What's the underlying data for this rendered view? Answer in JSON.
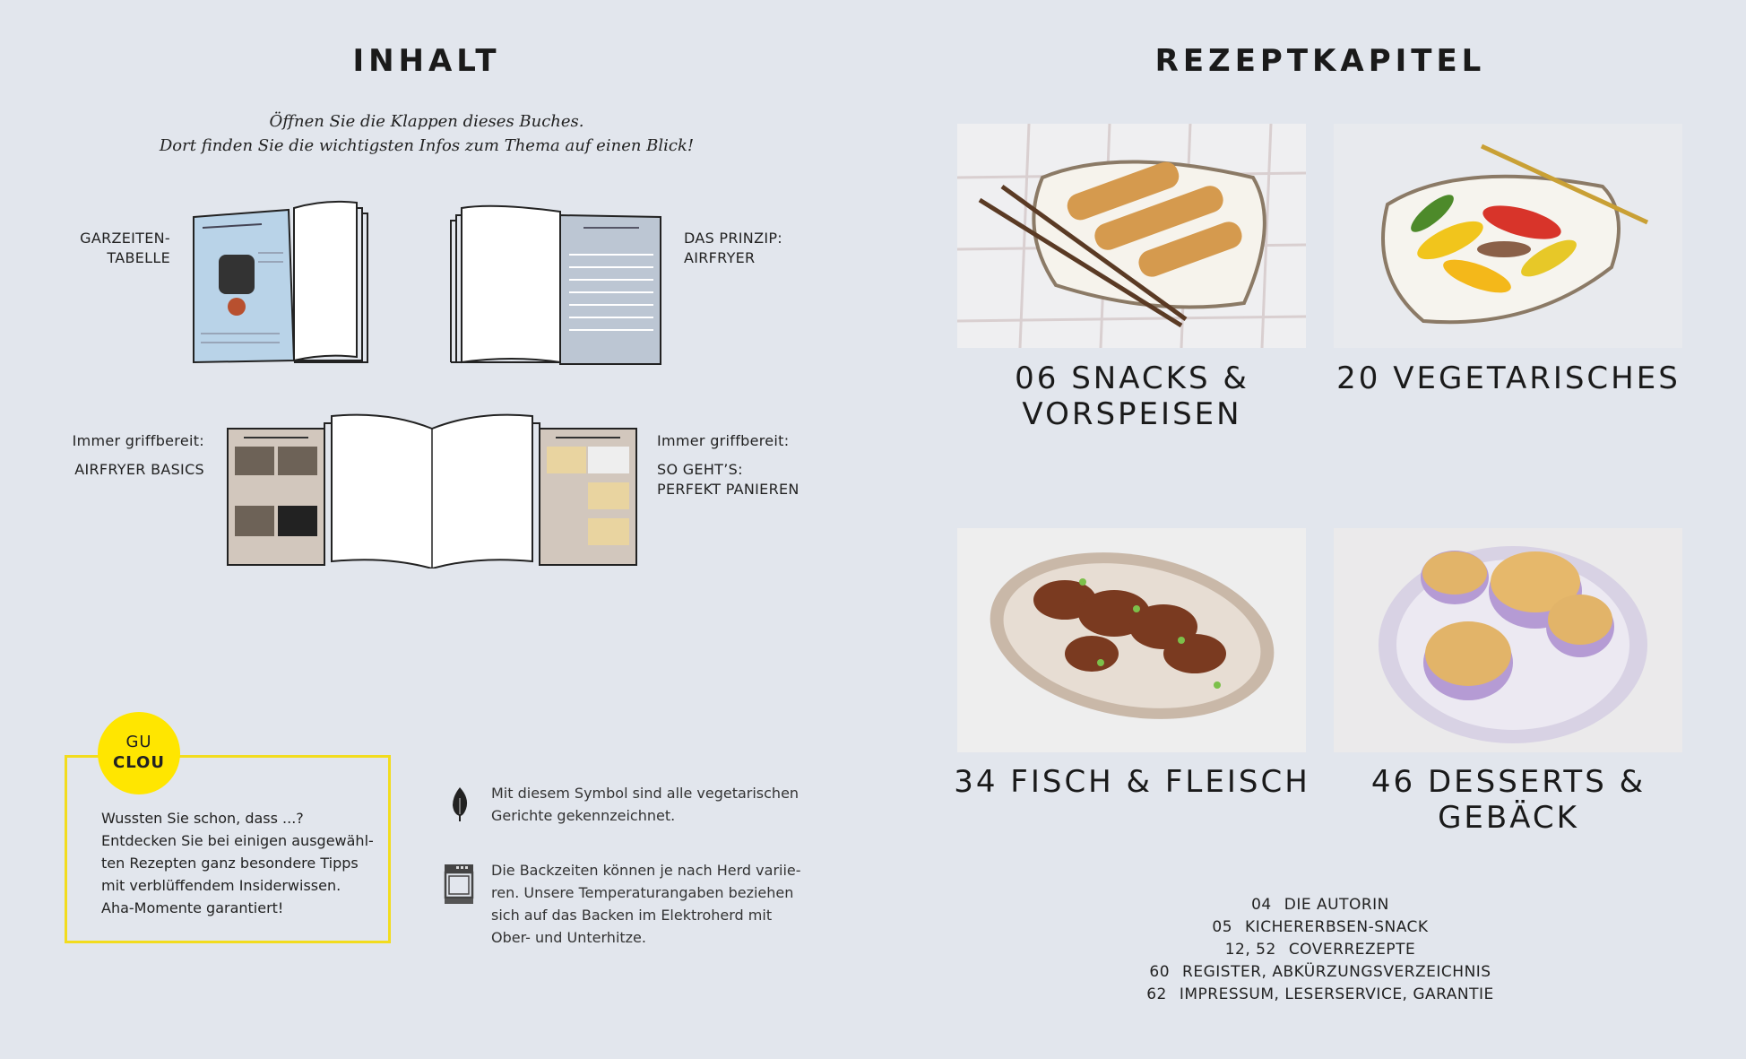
{
  "left": {
    "title": "INHALT",
    "intro": [
      "Öffnen Sie die Klappen dieses Buches.",
      "Dort finden Sie die wichtigsten Infos zum Thema auf einen Blick!"
    ],
    "flaps": [
      {
        "label": [
          "GARZEITEN-",
          "TABELLE"
        ],
        "page_title": "DAS PRINZIP: AIRFRYER"
      },
      {
        "label": [
          "DAS PRINZIP:",
          "AIRFRYER"
        ],
        "page_title": "GARZEITENTABELLE"
      },
      {
        "label": [
          "Immer griffbereit:",
          "AIRFRYER BASICS"
        ],
        "page_title": "AIRFRYER BASICS"
      },
      {
        "label": [
          "Immer griffbereit:",
          "SO GEHT’S:",
          "PERFEKT PANIEREN"
        ],
        "page_title": "SO GEHT’S: PERFEKT PANIEREN"
      }
    ],
    "clou": {
      "badge": [
        "GU",
        "CLOU"
      ],
      "text": [
        "Wussten Sie schon, dass ...?",
        "Entdecken Sie bei einigen ausgewähl-",
        "ten Rezepten ganz besondere Tipps",
        "mit verblüffendem Insiderwissen.",
        "Aha-Momente garantiert!"
      ],
      "color": "#ffe600"
    },
    "notes": [
      {
        "icon": "leaf-icon",
        "text": [
          "Mit diesem Symbol sind alle vegetarischen",
          "Gerichte gekennzeichnet."
        ]
      },
      {
        "icon": "oven-icon",
        "text": [
          "Die Backzeiten können je nach Herd variie-",
          "ren. Unsere Temperaturangaben beziehen",
          "sich auf das Backen im Elektroherd mit",
          "Ober- und Unterhitze."
        ]
      }
    ]
  },
  "right": {
    "title": "REZEPTKAPITEL",
    "chapters": [
      {
        "lines": [
          "06 SNACKS &",
          "VORSPEISEN"
        ],
        "photo": "spring rolls with chopsticks"
      },
      {
        "lines": [
          "20 VEGETARISCHES"
        ],
        "photo": "grilled peppers with fork"
      },
      {
        "lines": [
          "34 FISCH & FLEISCH"
        ],
        "photo": "chicken wings on oval plate"
      },
      {
        "lines": [
          "46 DESSERTS &",
          "GEBÄCK"
        ],
        "photo": "muffins on plate"
      }
    ],
    "toc": [
      {
        "page": "04",
        "label": "DIE AUTORIN"
      },
      {
        "page": "05",
        "label": "KICHERERBSEN-SNACK"
      },
      {
        "page": "12, 52",
        "label": "COVERREZEPTE"
      },
      {
        "page": "60",
        "label": "REGISTER, ABKÜRZUNGSVERZEICHNIS"
      },
      {
        "page": "62",
        "label": "IMPRESSUM, LESERSERVICE, GARANTIE"
      }
    ]
  }
}
